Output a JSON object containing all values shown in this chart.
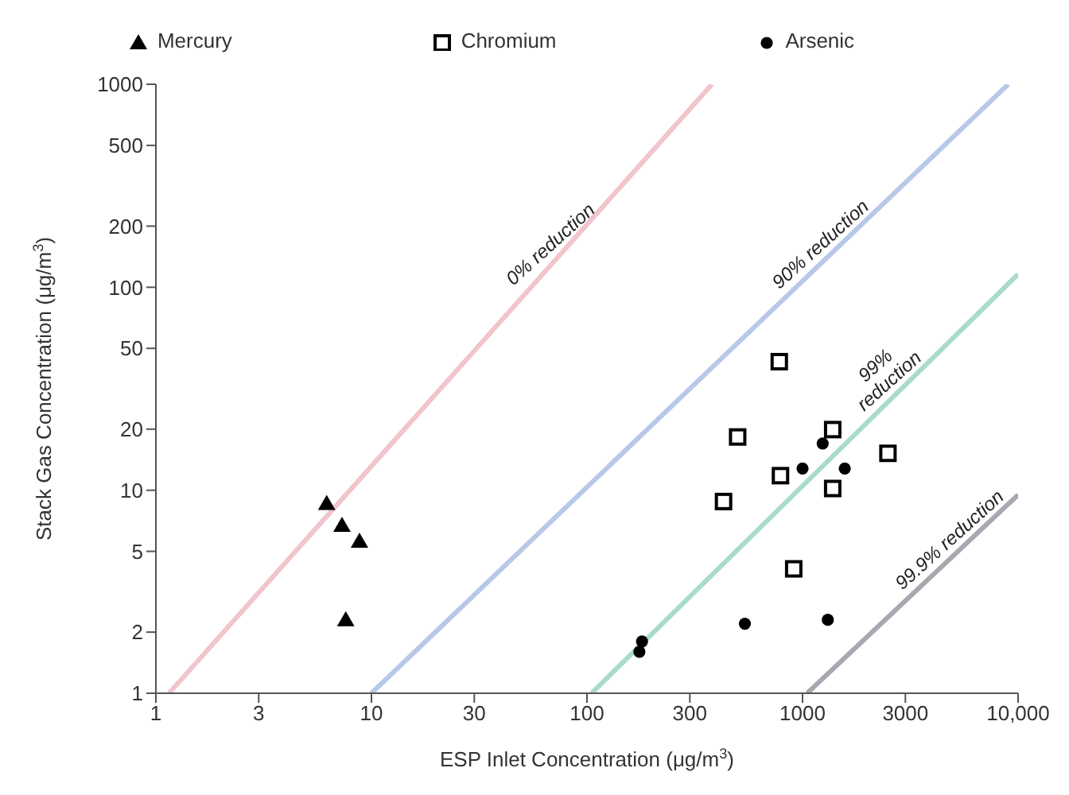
{
  "chart_data": {
    "type": "scatter",
    "xlabel": "ESP Inlet Concentration (μg/m$^{3}$)",
    "ylabel": "Stack Gas Concentration (μg/m$^{3}$)",
    "log": "xy",
    "xlim": [
      1,
      10000
    ],
    "ylim": [
      1,
      1000
    ],
    "xticks": [
      1,
      3,
      10,
      30,
      100,
      300,
      1000,
      3000,
      {
        "value": 10000,
        "label": "10,000"
      }
    ],
    "yticks": [
      1,
      2,
      5,
      10,
      20,
      50,
      100,
      200,
      500,
      1000
    ],
    "legend": "top",
    "series": [
      {
        "name": "Mercury",
        "marker": "triangle",
        "color": "#000000",
        "x": [
          6.2,
          7.3,
          8.8,
          7.6
        ],
        "values": [
          8.6,
          6.7,
          5.6,
          2.3
        ]
      },
      {
        "name": "Chromium",
        "marker": "square",
        "color": "#000000",
        "x": [
          780,
          500,
          1380,
          2490,
          790,
          1380,
          430,
          910
        ],
        "values": [
          43,
          18.3,
          19.9,
          15.2,
          11.8,
          10.2,
          8.8,
          4.1
        ]
      },
      {
        "name": "Arsenic",
        "marker": "circle",
        "color": "#000000",
        "x": [
          1240,
          1000,
          1570,
          540,
          180,
          175,
          1310
        ],
        "values": [
          17,
          12.8,
          12.8,
          2.2,
          1.8,
          1.6,
          2.3
        ]
      },
      {
        "type": "line",
        "color": "#f2c4cc",
        "x": [
          1.15,
          380
        ],
        "values": [
          1,
          1000
        ]
      },
      {
        "type": "line",
        "color": "#b8c8e8",
        "x": [
          10,
          9000
        ],
        "values": [
          1,
          1000
        ]
      },
      {
        "type": "line",
        "color": "#a8dcc8",
        "x": [
          105,
          10000
        ],
        "values": [
          1,
          116
        ]
      },
      {
        "type": "line",
        "color": "#a8a8b0",
        "x": [
          1050,
          10000
        ],
        "values": [
          1,
          9.5
        ]
      }
    ],
    "annotations": [
      "0% reduction",
      "90% reduction",
      "99%\nreduction",
      "99.9% reduction"
    ]
  }
}
